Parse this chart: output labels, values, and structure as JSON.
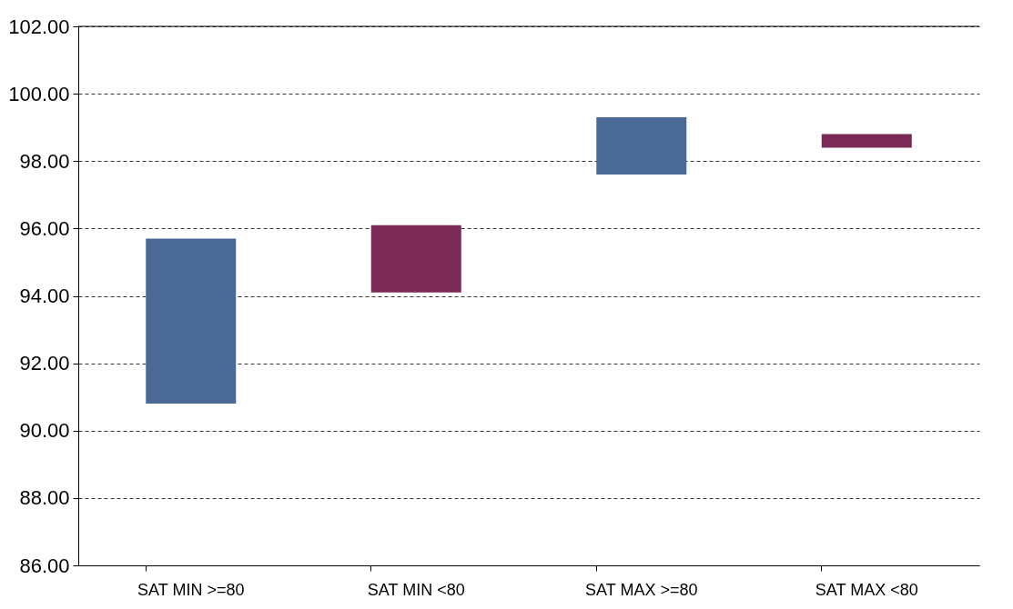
{
  "chart_data": {
    "type": "bar",
    "categories": [
      "SAT MIN >=80",
      "SAT MIN <80",
      "SAT MAX >=80",
      "SAT MAX <80"
    ],
    "values": [
      4.9,
      2.0,
      1.7,
      0.4
    ],
    "base": [
      90.8,
      94.1,
      97.6,
      98.4
    ],
    "colors": [
      "#4a6a95",
      "#7a2a55",
      "#4a6a95",
      "#7a2a55"
    ],
    "ylim": [
      86,
      102
    ],
    "yticks": [
      {
        "value": 86,
        "label": "86.00"
      },
      {
        "value": 88,
        "label": "88.00"
      },
      {
        "value": 90,
        "label": "90.00"
      },
      {
        "value": 92,
        "label": "92.00"
      },
      {
        "value": 94,
        "label": "94.00"
      },
      {
        "value": 96,
        "label": "96.00"
      },
      {
        "value": 98,
        "label": "98.00"
      },
      {
        "value": 100,
        "label": "100.00"
      },
      {
        "value": 102,
        "label": "102.00"
      }
    ],
    "grid": "y"
  }
}
